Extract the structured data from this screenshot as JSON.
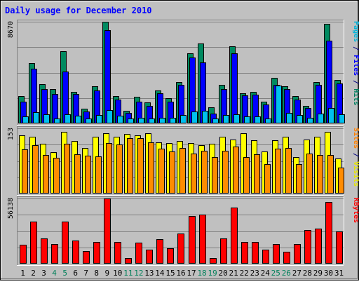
{
  "chart_data": {
    "type": "bar",
    "title": "Daily usage for December 2010",
    "categories": [
      "1",
      "2",
      "3",
      "4",
      "5",
      "6",
      "7",
      "8",
      "9",
      "10",
      "11",
      "12",
      "13",
      "14",
      "15",
      "16",
      "17",
      "18",
      "19",
      "20",
      "21",
      "22",
      "23",
      "24",
      "25",
      "26",
      "27",
      "28",
      "29",
      "30",
      "31"
    ],
    "weekend_days": [
      "4",
      "5",
      "11",
      "12",
      "18",
      "19",
      "25",
      "26"
    ],
    "panels": [
      {
        "id": "hits-panel",
        "ymax_label": "8670",
        "ymax": 8670,
        "right_label": [
          {
            "text": "Pages",
            "color": "#00b3d9"
          },
          {
            "text": " / ",
            "color": "#000080"
          },
          {
            "text": "Files",
            "color": "#0000ff"
          },
          {
            "text": " / ",
            "color": "#000080"
          },
          {
            "text": "Hits",
            "color": "#008060"
          }
        ],
        "series": [
          {
            "name": "Hits",
            "color": "#008a60",
            "values": [
              2350,
              5150,
              3350,
              2950,
              6150,
              2700,
              1250,
              3150,
              8670,
              2350,
              1050,
              2250,
              1800,
              2800,
              2150,
              3550,
              5950,
              6800,
              1400,
              3300,
              6550,
              2600,
              2700,
              1850,
              3900,
              3150,
              2350,
              1500,
              3500,
              8500,
              3700
            ]
          },
          {
            "name": "Files",
            "color": "#0000ff",
            "values": [
              1850,
              4650,
              2950,
              2500,
              4450,
              2500,
              1000,
              2800,
              7950,
              2050,
              900,
              1850,
              1500,
              2600,
              1850,
              3300,
              5650,
              5200,
              850,
              2950,
              5950,
              2400,
              2450,
              1600,
              3300,
              2900,
              2050,
              1300,
              3300,
              7050,
              3400
            ]
          },
          {
            "name": "Pages",
            "color": "#00c0ee",
            "values": [
              600,
              950,
              750,
              400,
              750,
              650,
              400,
              700,
              1150,
              650,
              400,
              450,
              400,
              500,
              500,
              700,
              1000,
              1100,
              400,
              700,
              750,
              600,
              600,
              400,
              3250,
              900,
              700,
              450,
              850,
              1300,
              800
            ]
          }
        ]
      },
      {
        "id": "visits-panel",
        "ymax_label": "153",
        "ymax": 153,
        "right_label": [
          {
            "text": "Sites",
            "color": "#ff8000"
          },
          {
            "text": " / ",
            "color": "#000080"
          },
          {
            "text": "Visits",
            "color": "#e6e600"
          }
        ],
        "series": [
          {
            "name": "Visits",
            "color": "#ffff00",
            "values": [
              137,
              133,
              116,
              97,
              144,
              123,
              107,
              133,
              141,
              133,
              140,
              137,
              141,
              120,
              119,
              123,
              119,
              114,
              117,
              133,
              127,
              141,
              125,
              99,
              125,
              133,
              85,
              126,
              133,
              144,
              82
            ]
          },
          {
            "name": "Sites",
            "color": "#ff8c00",
            "values": [
              103,
              114,
              90,
              84,
              116,
              92,
              89,
              88,
              118,
              115,
              130,
              130,
              120,
              105,
              99,
              107,
              93,
              101,
              85,
              101,
              110,
              85,
              92,
              69,
              106,
              107,
              69,
              93,
              90,
              91,
              61
            ]
          }
        ]
      },
      {
        "id": "kbytes-panel",
        "ymax_label": "56138",
        "ymax": 56138,
        "right_label": [
          {
            "text": "KBytes",
            "color": "#ff0000"
          }
        ],
        "series": [
          {
            "name": "KBytes",
            "color": "#ff0000",
            "values": [
              16500,
              36000,
              22000,
              17000,
              36000,
              20000,
              11000,
              19000,
              56138,
              19000,
              5000,
              18000,
              12000,
              21000,
              13000,
              26000,
              41000,
              42000,
              5000,
              22000,
              48000,
              19000,
              19000,
              12000,
              17000,
              10000,
              17000,
              29000,
              30000,
              53000,
              28000
            ]
          }
        ]
      }
    ]
  }
}
